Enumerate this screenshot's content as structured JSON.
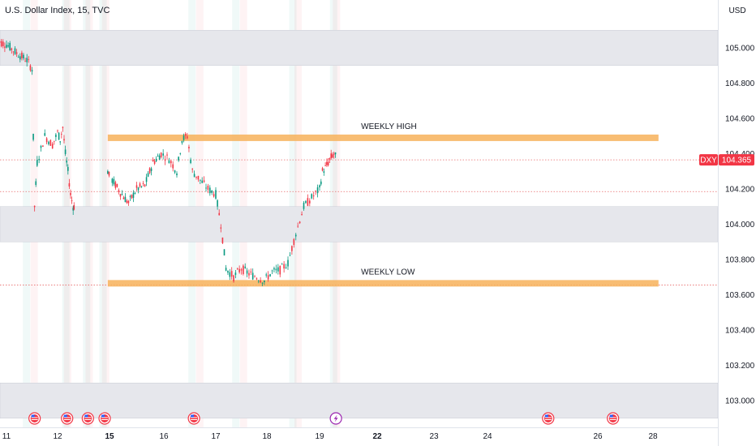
{
  "header": {
    "title": "U.S. Dollar Index, 15, TVC",
    "currency": "USD"
  },
  "chart_data": {
    "type": "candlestick",
    "symbol": "DXY",
    "last_price": "104.365",
    "ylim": [
      102.88,
      105.15
    ],
    "y_ticks": [
      "105.000",
      "104.800",
      "104.600",
      "104.400",
      "104.200",
      "104.000",
      "103.800",
      "103.600",
      "103.400",
      "103.200",
      "103.000"
    ],
    "y_tick_values": [
      105.0,
      104.8,
      104.6,
      104.4,
      104.2,
      104.0,
      103.8,
      103.6,
      103.4,
      103.2,
      103.0
    ],
    "x_ticks": [
      {
        "label": "11",
        "day": 11,
        "bold": false
      },
      {
        "label": "12",
        "day": 12,
        "bold": false
      },
      {
        "label": "15",
        "day": 15,
        "bold": true
      },
      {
        "label": "16",
        "day": 16,
        "bold": false
      },
      {
        "label": "17",
        "day": 17,
        "bold": false
      },
      {
        "label": "18",
        "day": 18,
        "bold": false
      },
      {
        "label": "19",
        "day": 19,
        "bold": false
      },
      {
        "label": "22",
        "day": 22,
        "bold": true
      },
      {
        "label": "23",
        "day": 23,
        "bold": false
      },
      {
        "label": "24",
        "day": 24,
        "bold": false
      },
      {
        "label": "26",
        "day": 26,
        "bold": false
      },
      {
        "label": "28",
        "day": 28,
        "bold": false
      }
    ],
    "zones": [
      {
        "from": 104.9,
        "to": 105.1
      },
      {
        "from": 103.9,
        "to": 104.1
      },
      {
        "from": 102.9,
        "to": 103.1
      }
    ],
    "levels": [
      {
        "label": "WEEKLY HIGH",
        "value": 104.49,
        "from_day": 14.9,
        "to_day": 28.2
      },
      {
        "label": "WEEKLY LOW",
        "value": 103.665,
        "from_day": 14.9,
        "to_day": 28.2
      }
    ],
    "dotted_lines": [
      {
        "value": 104.365,
        "color": "#e86a6a"
      },
      {
        "value": 104.185,
        "color": "#e86a6a"
      },
      {
        "value": 103.655,
        "color": "#e86a6a"
      }
    ],
    "price_path": [
      [
        10.8,
        105.04
      ],
      [
        11.0,
        105.02
      ],
      [
        11.2,
        104.97
      ],
      [
        11.4,
        104.93
      ],
      [
        11.5,
        104.88
      ],
      [
        11.55,
        104.1
      ],
      [
        11.6,
        104.35
      ],
      [
        11.75,
        104.5
      ],
      [
        11.9,
        104.45
      ],
      [
        12.0,
        104.52
      ],
      [
        12.15,
        104.48
      ],
      [
        12.3,
        104.55
      ],
      [
        12.45,
        104.4
      ],
      [
        12.6,
        104.3
      ],
      [
        12.75,
        104.17
      ],
      [
        12.9,
        104.1
      ],
      [
        13.0,
        104.1
      ],
      [
        14.9,
        104.3
      ],
      [
        15.05,
        104.25
      ],
      [
        15.2,
        104.18
      ],
      [
        15.35,
        104.12
      ],
      [
        15.5,
        104.2
      ],
      [
        15.65,
        104.22
      ],
      [
        15.8,
        104.35
      ],
      [
        15.95,
        104.4
      ],
      [
        16.1,
        104.37
      ],
      [
        16.25,
        104.3
      ],
      [
        16.35,
        104.48
      ],
      [
        16.45,
        104.5
      ],
      [
        16.55,
        104.3
      ],
      [
        16.7,
        104.25
      ],
      [
        16.85,
        104.2
      ],
      [
        17.0,
        104.17
      ],
      [
        17.1,
        104.0
      ],
      [
        17.2,
        103.75
      ],
      [
        17.35,
        103.7
      ],
      [
        17.5,
        103.75
      ],
      [
        17.65,
        103.72
      ],
      [
        17.8,
        103.7
      ],
      [
        17.95,
        103.68
      ],
      [
        18.1,
        103.73
      ],
      [
        18.25,
        103.74
      ],
      [
        18.4,
        103.78
      ],
      [
        18.55,
        103.95
      ],
      [
        18.7,
        104.1
      ],
      [
        18.85,
        104.15
      ],
      [
        19.0,
        104.2
      ],
      [
        19.15,
        104.3
      ],
      [
        19.3,
        104.32
      ],
      [
        19.45,
        104.35
      ],
      [
        19.6,
        104.38
      ],
      [
        19.75,
        104.4
      ],
      [
        19.9,
        104.37
      ]
    ],
    "event_days": [
      11.55,
      12.55,
      13.75,
      14.72,
      16.58,
      19.85,
      25.1,
      26.55
    ],
    "event_types": [
      "us-flag",
      "us-flag",
      "us-flag",
      "us-flag",
      "us-flag",
      "lightning",
      "us-flag",
      "us-flag"
    ],
    "colors": {
      "up": "#089981",
      "down": "#f23645",
      "level": "#f7b15a",
      "zone": "#e6e7ec",
      "badge": "#f23645",
      "lightning": "#9c27b0"
    }
  }
}
